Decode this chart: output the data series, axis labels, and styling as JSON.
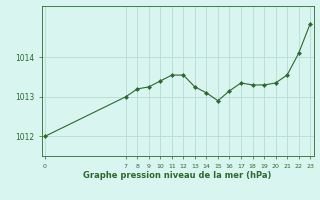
{
  "x": [
    0,
    7,
    8,
    9,
    10,
    11,
    12,
    13,
    14,
    15,
    16,
    17,
    18,
    19,
    20,
    21,
    22,
    23
  ],
  "y": [
    1012.0,
    1013.0,
    1013.2,
    1013.25,
    1013.4,
    1013.55,
    1013.55,
    1013.25,
    1013.1,
    1012.9,
    1013.15,
    1013.35,
    1013.3,
    1013.3,
    1013.35,
    1013.55,
    1014.1,
    1014.85
  ],
  "line_color": "#2d6a2d",
  "marker_color": "#2d6a2d",
  "bg_color": "#d8f5f0",
  "grid_color": "#b0d8d0",
  "axis_color": "#2d6a2d",
  "xlabel": "Graphe pression niveau de la mer (hPa)",
  "yticks": [
    1012,
    1013,
    1014
  ],
  "xticks": [
    0,
    7,
    8,
    9,
    10,
    11,
    12,
    13,
    14,
    15,
    16,
    17,
    18,
    19,
    20,
    21,
    22,
    23
  ],
  "ylim": [
    1011.5,
    1015.3
  ],
  "xlim": [
    -0.3,
    23.3
  ]
}
